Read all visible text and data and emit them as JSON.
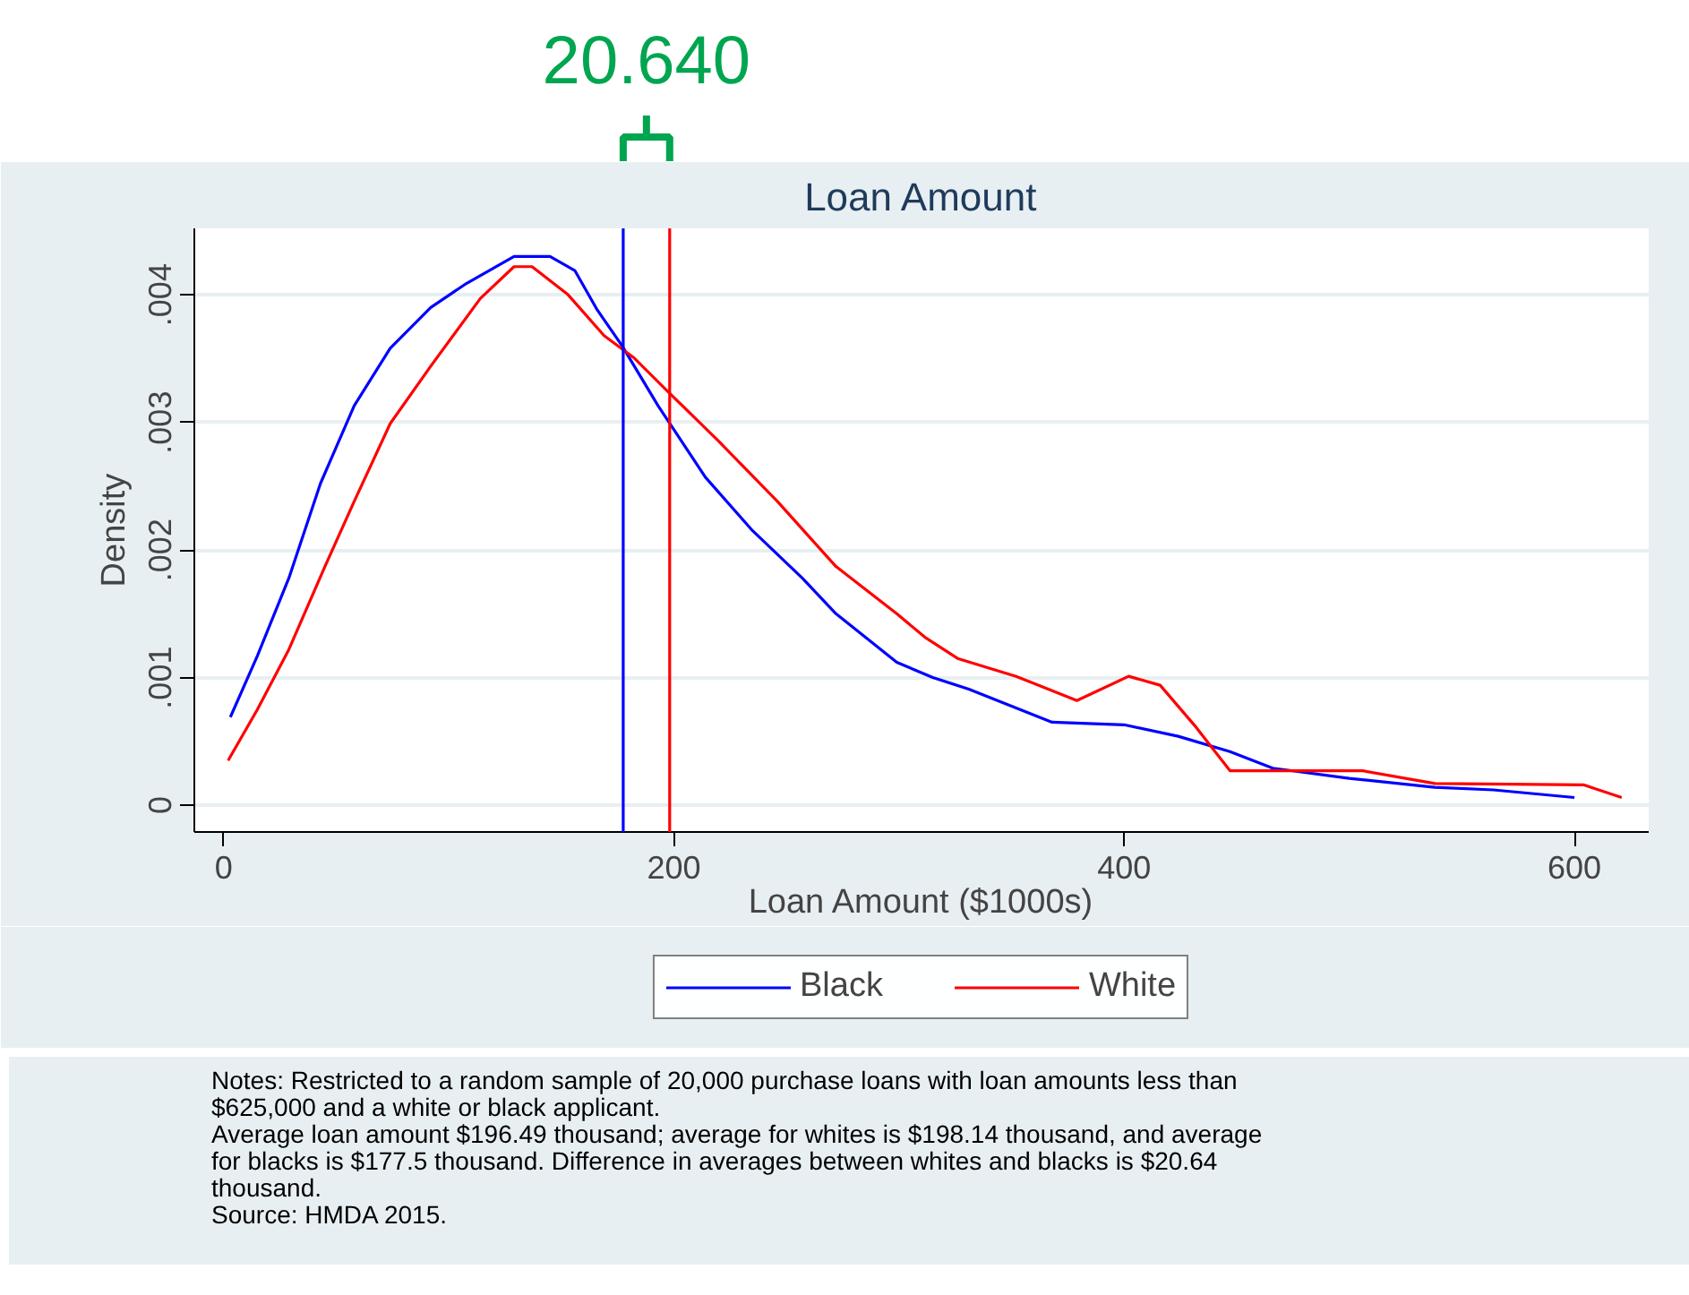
{
  "chart_data": {
    "type": "line",
    "title": "Loan Amount",
    "xlabel": "Loan Amount ($1000s)",
    "ylabel": "Density",
    "xlim": [
      -13,
      633
    ],
    "ylim": [
      -0.00021,
      0.00452
    ],
    "xticks": [
      0,
      200,
      400,
      600
    ],
    "yticks": [
      0,
      {
        "value": 0.001,
        "label": ".001"
      },
      {
        "value": 0.002,
        "label": ".002"
      },
      {
        "value": 0.003,
        "label": ".003"
      },
      {
        "value": 0.004,
        "label": ".004"
      }
    ],
    "grid": "y",
    "legend": "bottom",
    "line_style": "solid",
    "marker": "none",
    "series": [
      {
        "name": "Black",
        "color": "#0000ff",
        "x": [
          3,
          15,
          29,
          43,
          58,
          74,
          92,
          108,
          129,
          145,
          156,
          166,
          177,
          193,
          214,
          235,
          257,
          272,
          299,
          315,
          331,
          368,
          400,
          424,
          447,
          466,
          500,
          538,
          564,
          600
        ],
        "values": [
          0.00069,
          0.00117,
          0.00178,
          0.00252,
          0.00313,
          0.00358,
          0.0039,
          0.00409,
          0.0043,
          0.0043,
          0.00419,
          0.00388,
          0.0036,
          0.00313,
          0.00257,
          0.00215,
          0.00178,
          0.0015,
          0.00112,
          0.001,
          0.00091,
          0.00065,
          0.00063,
          0.00054,
          0.00042,
          0.00029,
          0.00021,
          0.00014,
          0.00012,
          6e-05
        ]
      },
      {
        "name": "White",
        "color": "#ff0000",
        "x": [
          2,
          15,
          29,
          45,
          58,
          74,
          92,
          114,
          129,
          137,
          153,
          169,
          182,
          198,
          220,
          246,
          272,
          299,
          312,
          326,
          352,
          379,
          402,
          416,
          432,
          447,
          506,
          538,
          604,
          621
        ],
        "values": [
          0.00035,
          0.00075,
          0.00122,
          0.00187,
          0.00238,
          0.00299,
          0.00344,
          0.00397,
          0.00422,
          0.00422,
          0.004,
          0.00368,
          0.00351,
          0.00323,
          0.00285,
          0.00238,
          0.00187,
          0.0015,
          0.00131,
          0.00115,
          0.00101,
          0.00082,
          0.00101,
          0.00094,
          0.00061,
          0.00027,
          0.00027,
          0.00017,
          0.00016,
          6e-05
        ]
      }
    ],
    "ref_lines": [
      {
        "axis": "x",
        "value": 177.5,
        "color": "#0000ff"
      },
      {
        "axis": "x",
        "value": 198.14,
        "color": "#ff0000"
      }
    ],
    "annotations": [
      "20.640",
      "Notes: Restricted to a random sample of 20,000 purchase loans with loan amounts less than $625,000 and a white or black applicant.",
      "Average loan amount $196.49 thousand; average for whites is $198.14 thousand, and average for blacks is $177.5 thousand.  Difference in averages between whites and blacks is $20.64 thousand.",
      "Source: HMDA 2015."
    ]
  }
}
